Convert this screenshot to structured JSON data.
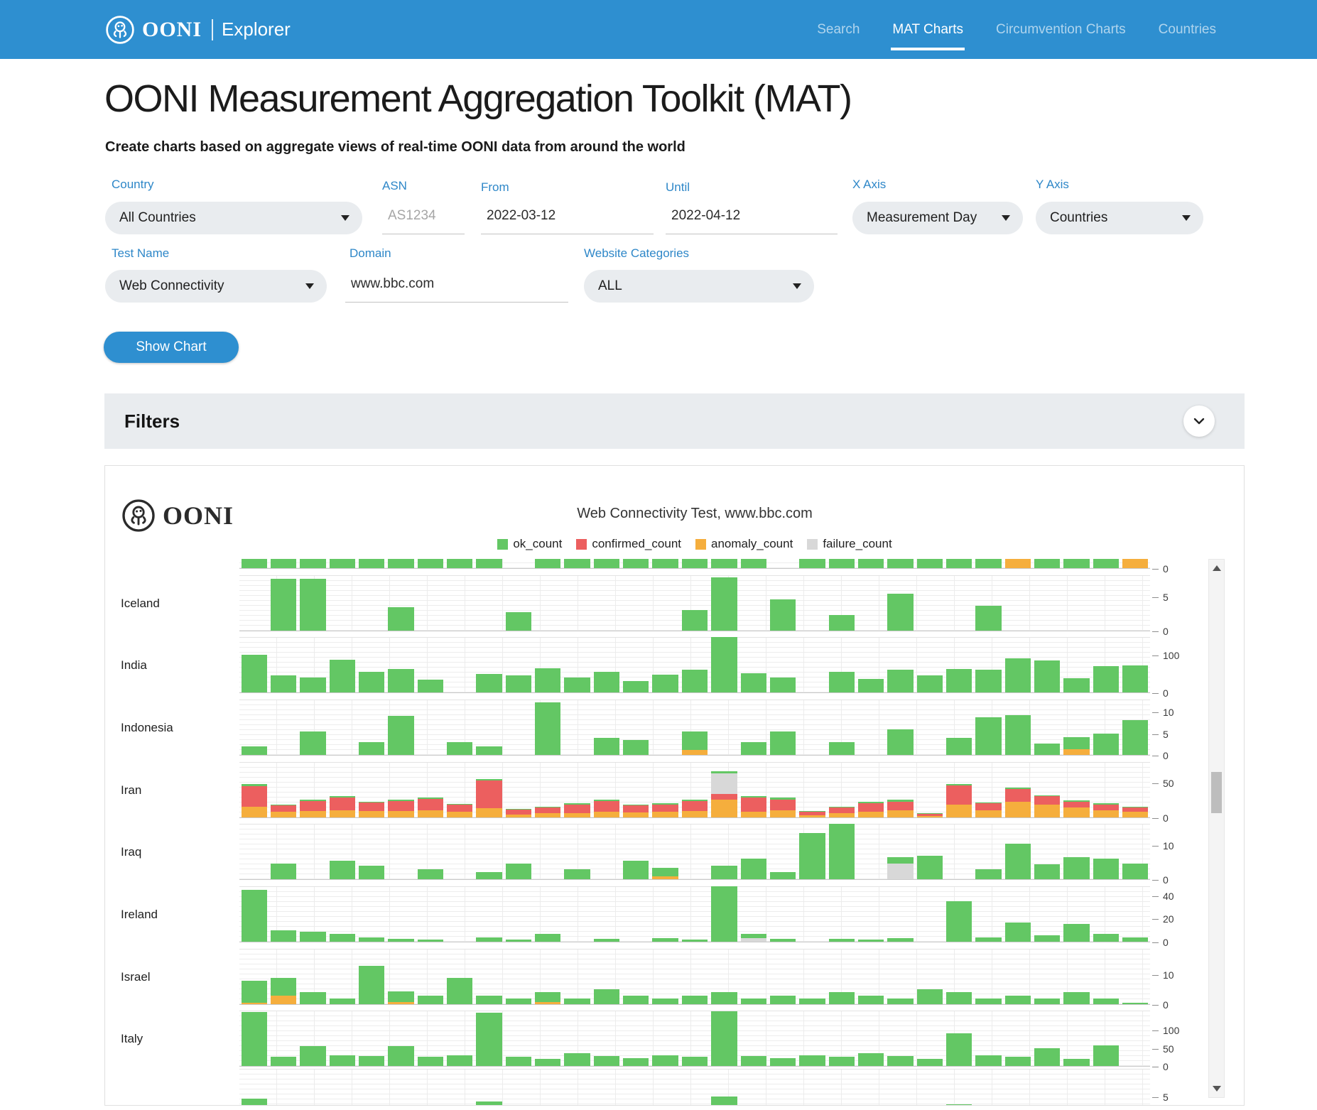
{
  "navbar": {
    "brand": "OONI",
    "brand_sub": "Explorer",
    "items": [
      {
        "label": "Search",
        "active": false
      },
      {
        "label": "MAT Charts",
        "active": true
      },
      {
        "label": "Circumvention Charts",
        "active": false
      },
      {
        "label": "Countries",
        "active": false
      }
    ],
    "bg_color": "#2e8fd0"
  },
  "header": {
    "title": "OONI Measurement Aggregation Toolkit (MAT)",
    "subtitle": "Create charts based on aggregate views of real-time OONI data from around the world"
  },
  "form": {
    "country": {
      "label": "Country",
      "value": "All Countries"
    },
    "asn": {
      "label": "ASN",
      "placeholder": "AS1234"
    },
    "from": {
      "label": "From",
      "value": "2022-03-12"
    },
    "until": {
      "label": "Until",
      "value": "2022-04-12"
    },
    "x_axis": {
      "label": "X Axis",
      "value": "Measurement Day"
    },
    "y_axis": {
      "label": "Y Axis",
      "value": "Countries"
    },
    "test_name": {
      "label": "Test Name",
      "value": "Web Connectivity"
    },
    "domain": {
      "label": "Domain",
      "value": "www.bbc.com"
    },
    "categories": {
      "label": "Website Categories",
      "value": "ALL"
    }
  },
  "actions": {
    "show_chart": "Show Chart"
  },
  "filters": {
    "title": "Filters"
  },
  "chart": {
    "logo_text": "OONI",
    "chart_data": {
      "type": "bar",
      "stacked": true,
      "title": "Web Connectivity Test, www.bbc.com",
      "x_range": [
        "2022-03-12",
        "2022-04-12"
      ],
      "n_slots": 31,
      "legend_position": "top-center",
      "series_order_bottom_to_top": [
        "anomaly_count",
        "confirmed_count",
        "failure_count",
        "ok_count"
      ],
      "series": [
        {
          "name": "ok_count",
          "color": "#63c764"
        },
        {
          "name": "confirmed_count",
          "color": "#ec5f5f"
        },
        {
          "name": "anomaly_count",
          "color": "#f5ae3d"
        },
        {
          "name": "failure_count",
          "color": "#d8d8d8"
        }
      ],
      "rows": [
        {
          "country": "",
          "clip": "top",
          "axis_max": 14,
          "ticks": [
            {
              "value": 0,
              "label": "0"
            }
          ],
          "bars": [
            12,
            14,
            14,
            9,
            14,
            8,
            14,
            10,
            14,
            0,
            12,
            7,
            14,
            9,
            8,
            14,
            8,
            14,
            0,
            14,
            9,
            14,
            7,
            10,
            14,
            6,
            [
              6,
              0,
              8,
              0
            ],
            9,
            12,
            7,
            [
              10,
              0,
              4,
              0
            ]
          ]
        },
        {
          "country": "Iceland",
          "axis_max": 8.25,
          "ticks": [
            {
              "value": 5,
              "label": "5"
            },
            {
              "value": 0,
              "label": "0"
            }
          ],
          "bars": [
            0,
            7.6,
            7.6,
            0,
            0,
            3.4,
            0,
            0,
            0,
            2.7,
            0,
            0,
            0,
            0,
            0,
            3,
            7.8,
            0,
            4.6,
            0,
            2.3,
            0,
            5.4,
            0,
            0,
            3.7,
            0,
            0,
            0,
            0,
            0
          ]
        },
        {
          "country": "India",
          "axis_max": 150,
          "ticks": [
            {
              "value": 100,
              "label": "100"
            },
            {
              "value": 0,
              "label": "0"
            }
          ],
          "bars": [
            100,
            45,
            40,
            88,
            55,
            62,
            35,
            0,
            50,
            46,
            65,
            40,
            56,
            30,
            47,
            60,
            148,
            52,
            40,
            0,
            55,
            36,
            60,
            45,
            62,
            60,
            92,
            85,
            38,
            70,
            72
          ]
        },
        {
          "country": "Indonesia",
          "axis_max": 13,
          "ticks": [
            {
              "value": 10,
              "label": "10"
            },
            {
              "value": 5,
              "label": "5"
            },
            {
              "value": 0,
              "label": "0"
            }
          ],
          "bars": [
            2,
            0,
            5.5,
            0,
            3,
            9,
            0,
            3,
            2,
            0,
            12.2,
            0,
            4,
            3.5,
            0,
            [
              4.3,
              0,
              1.2,
              0
            ],
            0,
            3,
            5.5,
            0,
            3,
            0,
            6,
            0,
            4,
            8.7,
            9.2,
            2.6,
            [
              2.8,
              0,
              1.3,
              0
            ],
            5,
            8
          ]
        },
        {
          "country": "Iran",
          "axis_max": 80,
          "ticks": [
            {
              "value": 50,
              "label": "50"
            },
            {
              "value": 0,
              "label": "0"
            }
          ],
          "bars": [
            [
              3,
              30,
              15,
              0
            ],
            [
              1,
              9,
              8,
              0
            ],
            [
              2,
              14,
              9,
              0
            ],
            [
              2,
              18,
              10,
              0
            ],
            [
              1,
              12,
              9,
              0
            ],
            [
              2,
              14,
              9,
              0
            ],
            [
              2,
              16,
              10,
              0
            ],
            [
              1,
              10,
              8,
              0
            ],
            [
              2,
              40,
              13,
              0
            ],
            [
              1,
              7,
              4,
              0
            ],
            [
              1,
              8,
              6,
              0
            ],
            [
              2,
              12,
              6,
              0
            ],
            [
              2,
              15,
              8,
              0
            ],
            [
              1,
              10,
              7,
              0
            ],
            [
              2,
              10,
              8,
              0
            ],
            [
              2,
              14,
              9,
              0
            ],
            [
              3,
              8,
              25,
              30
            ],
            [
              2,
              20,
              8,
              0
            ],
            [
              3,
              15,
              10,
              0
            ],
            [
              1,
              5,
              3,
              0
            ],
            [
              1,
              8,
              6,
              0
            ],
            [
              2,
              12,
              8,
              0
            ],
            [
              3,
              12,
              10,
              0
            ],
            [
              1,
              3,
              2,
              0
            ],
            [
              2,
              28,
              18,
              0
            ],
            [
              1,
              10,
              10,
              0
            ],
            [
              2,
              19,
              22,
              0
            ],
            [
              1,
              12,
              18,
              0
            ],
            [
              2,
              8,
              14,
              0
            ],
            [
              2,
              8,
              10,
              0
            ],
            [
              1.5,
              6,
              8,
              0
            ]
          ]
        },
        {
          "country": "Iraq",
          "axis_max": 16.5,
          "ticks": [
            {
              "value": 10,
              "label": "10"
            },
            {
              "value": 0,
              "label": "0"
            }
          ],
          "bars": [
            0,
            4.5,
            0,
            5.5,
            4,
            0,
            3,
            0,
            2,
            4.5,
            0,
            3,
            0,
            5.5,
            [
              2.5,
              0,
              0.8,
              0
            ],
            0,
            4,
            6,
            2,
            13.5,
            16.2,
            0,
            [
              2,
              0,
              0,
              4.5
            ],
            7,
            0,
            3,
            10.4,
            4.4,
            6.5,
            6,
            4.7
          ]
        },
        {
          "country": "Ireland",
          "axis_max": 48.6,
          "ticks": [
            {
              "value": 40,
              "label": "40"
            },
            {
              "value": 20,
              "label": "20"
            },
            {
              "value": 0,
              "label": "0"
            }
          ],
          "bars": [
            45,
            10,
            8.5,
            7,
            4,
            2.5,
            2,
            0,
            3.5,
            2,
            7,
            0,
            2.5,
            0,
            3,
            2,
            48,
            [
              3.5,
              0,
              0,
              3
            ],
            2.5,
            0,
            2.5,
            2,
            3,
            0,
            35,
            4,
            16.6,
            5.5,
            15.4,
            7,
            4
          ]
        },
        {
          "country": "Israel",
          "axis_max": 19,
          "ticks": [
            {
              "value": 10,
              "label": "10"
            },
            {
              "value": 0,
              "label": "0"
            }
          ],
          "bars": [
            [
              7.5,
              0,
              0.5,
              0
            ],
            [
              6,
              0,
              3,
              0
            ],
            4,
            2,
            13,
            [
              3.5,
              0,
              0.8,
              0
            ],
            3,
            9,
            3,
            2,
            [
              3.2,
              0,
              0.8,
              0
            ],
            2,
            5,
            3,
            2,
            3,
            4,
            2,
            3,
            2,
            4,
            3,
            2,
            5,
            4,
            2,
            3,
            2,
            4,
            2,
            0.6
          ]
        },
        {
          "country": "Italy",
          "axis_max": 155,
          "ticks": [
            {
              "value": 100,
              "label": "100"
            },
            {
              "value": 50,
              "label": "50"
            },
            {
              "value": 0,
              "label": "0"
            }
          ],
          "bars": [
            150,
            25,
            55,
            30,
            28,
            55,
            25,
            30,
            148,
            25,
            20,
            35,
            28,
            22,
            30,
            25,
            152,
            28,
            22,
            30,
            25,
            35,
            28,
            20,
            90,
            30,
            25,
            50,
            20,
            57,
            0
          ]
        },
        {
          "country": "",
          "clip": "bottom",
          "axis_max": 10,
          "ticks": [
            {
              "value": 5,
              "label": "5"
            }
          ],
          "bars": [
            4.5,
            0,
            0,
            0,
            0,
            0,
            0,
            0,
            4,
            0,
            0,
            0,
            0,
            0,
            0,
            0,
            5,
            0,
            0,
            0,
            0,
            0,
            0,
            0,
            3.5,
            0,
            0,
            0,
            0,
            3,
            0
          ]
        }
      ]
    }
  }
}
